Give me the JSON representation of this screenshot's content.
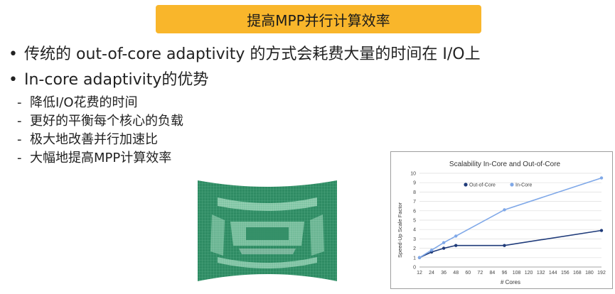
{
  "slide": {
    "title": "提高MPP并行计算效率",
    "bullets": [
      {
        "text": "传统的 out-of-core adaptivity 的方式会耗费大量的时间在 I/O上"
      },
      {
        "text": "In-core adaptivity的优势",
        "sub": [
          "降低I/O花费的时间",
          "更好的平衡每个核心的负载",
          "极大地改善并行加速比",
          "大幅地提高MPP计算效率"
        ]
      }
    ],
    "bullet_glyph": "•",
    "dash_glyph": "-"
  },
  "colors": {
    "banner": "#f9b62b",
    "mesh": "#2e8b63",
    "out_of_core": "#1f3b7a",
    "in_core": "#7fa8e8"
  },
  "chart_data": {
    "type": "line",
    "title": "Scalability In-Core and Out-of-Core",
    "xlabel": "# Cores",
    "ylabel": "Speed-Up Scale Factor",
    "x_ticks": [
      12,
      24,
      36,
      48,
      60,
      72,
      84,
      96,
      108,
      120,
      132,
      144,
      156,
      168,
      180,
      192
    ],
    "y_ticks": [
      0,
      1,
      2,
      3,
      4,
      5,
      6,
      7,
      8,
      9,
      10
    ],
    "xlim": [
      12,
      192
    ],
    "ylim": [
      0,
      10
    ],
    "grid": true,
    "legend": "top-center",
    "series": [
      {
        "name": "Out-of-Core",
        "color": "#1f3b7a",
        "x": [
          12,
          24,
          36,
          48,
          96,
          192
        ],
        "y": [
          1.0,
          1.6,
          2.0,
          2.3,
          2.3,
          3.9
        ]
      },
      {
        "name": "In-Core",
        "color": "#7fa8e8",
        "x": [
          12,
          24,
          36,
          48,
          96,
          192
        ],
        "y": [
          1.0,
          1.8,
          2.6,
          3.3,
          6.1,
          9.5
        ]
      }
    ]
  }
}
